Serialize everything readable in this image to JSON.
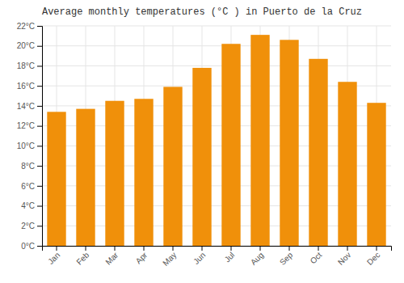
{
  "chart_data": {
    "type": "bar",
    "title": "Average monthly temperatures (°C ) in Puerto de la Cruz",
    "categories": [
      "Jan",
      "Feb",
      "Mar",
      "Apr",
      "May",
      "Jun",
      "Jul",
      "Aug",
      "Sep",
      "Oct",
      "Nov",
      "Dec"
    ],
    "values": [
      13.4,
      13.7,
      14.5,
      14.7,
      15.9,
      17.8,
      20.2,
      21.1,
      20.6,
      18.7,
      16.4,
      14.3
    ],
    "color": "#F0900A",
    "ylim": [
      0,
      22
    ],
    "yticks": [
      {
        "value": 0,
        "label": "0°C"
      },
      {
        "value": 2,
        "label": "2°C"
      },
      {
        "value": 4,
        "label": "4°C"
      },
      {
        "value": 6,
        "label": "6°C"
      },
      {
        "value": 8,
        "label": "8°C"
      },
      {
        "value": 10,
        "label": "10°C"
      },
      {
        "value": 12,
        "label": "12°C"
      },
      {
        "value": 14,
        "label": "14°C"
      },
      {
        "value": 16,
        "label": "16°C"
      },
      {
        "value": 18,
        "label": "18°C"
      },
      {
        "value": 20,
        "label": "20°C"
      },
      {
        "value": 22,
        "label": "22°C"
      }
    ],
    "grid": true
  }
}
